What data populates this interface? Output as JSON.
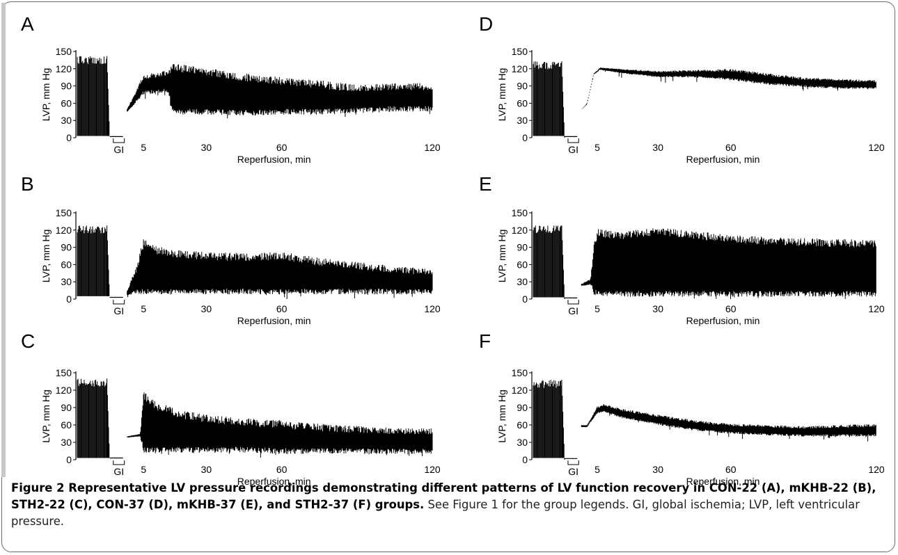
{
  "figure": {
    "caption_bold": "Figure 2 Representative LV pressure recordings demonstrating different patterns of LV function recovery in CON-22 (A), mKHB-22 (B), STH2-22 (C), CON-37 (D), mKHB-37 (E), and STH2-37 (F) groups.",
    "caption_rest": " See Figure 1 for the group legends. GI, global ischemia; LVP, left ventricular pressure."
  },
  "chart_data": [
    {
      "panel": "A",
      "type": "line",
      "ylabel": "LVP, mm Hg",
      "xlabel": "Reperfusion, min",
      "yticks": [
        0,
        30,
        60,
        90,
        120,
        150
      ],
      "xticks": [
        5,
        30,
        60,
        120
      ],
      "gap_label": "GI",
      "series": [
        {
          "baseline_max": 142,
          "baseline_min": 3,
          "ischemia_value": 2,
          "reperfusion_start": 40,
          "x": [
            0,
            5,
            15,
            16,
            20,
            30,
            45,
            60,
            75,
            90,
            105,
            120
          ],
          "upper": [
            45,
            110,
            118,
            128,
            128,
            122,
            112,
            105,
            100,
            92,
            95,
            95
          ],
          "lower": [
            42,
            75,
            78,
            45,
            40,
            40,
            38,
            40,
            40,
            42,
            45,
            45
          ]
        }
      ]
    },
    {
      "panel": "B",
      "type": "line",
      "ylabel": "LVP, mm Hg",
      "xlabel": "Reperfusion, min",
      "yticks": [
        0,
        30,
        60,
        90,
        120,
        150
      ],
      "xticks": [
        5,
        30,
        60,
        120
      ],
      "gap_label": "GI",
      "series": [
        {
          "baseline_max": 128,
          "baseline_min": 5,
          "ischemia_value": 3,
          "reperfusion_start": 6,
          "x": [
            0,
            3,
            5,
            10,
            20,
            30,
            45,
            60,
            75,
            90,
            105,
            120
          ],
          "upper": [
            8,
            60,
            105,
            92,
            85,
            82,
            80,
            82,
            72,
            65,
            58,
            52
          ],
          "lower": [
            6,
            8,
            8,
            8,
            8,
            8,
            8,
            8,
            8,
            8,
            8,
            8
          ]
        }
      ]
    },
    {
      "panel": "C",
      "type": "line",
      "ylabel": "LVP, mm Hg",
      "xlabel": "Reperfusion, min",
      "yticks": [
        0,
        30,
        60,
        90,
        120,
        150
      ],
      "xticks": [
        5,
        30,
        60,
        120
      ],
      "gap_label": "GI",
      "series": [
        {
          "baseline_max": 140,
          "baseline_min": 3,
          "ischemia_value": 3,
          "reperfusion_start": 35,
          "x": [
            0,
            4,
            5,
            10,
            20,
            30,
            45,
            60,
            75,
            90,
            105,
            120
          ],
          "upper": [
            40,
            45,
            118,
            100,
            85,
            78,
            72,
            68,
            62,
            58,
            55,
            55
          ],
          "lower": [
            38,
            40,
            12,
            12,
            12,
            12,
            12,
            10,
            10,
            10,
            10,
            10
          ]
        }
      ]
    },
    {
      "panel": "D",
      "type": "line",
      "ylabel": "LVP, mm Hg",
      "xlabel": "Reperfusion, min",
      "yticks": [
        0,
        30,
        60,
        90,
        120,
        150
      ],
      "xticks": [
        5,
        30,
        60,
        120
      ],
      "gap_label": "GI",
      "series": [
        {
          "baseline_max": 133,
          "baseline_min": 3,
          "ischemia_value": 2,
          "reperfusion_start": 45,
          "x": [
            0,
            2,
            4,
            6,
            15,
            30,
            45,
            60,
            75,
            90,
            105,
            120
          ],
          "upper": [
            46,
            60,
            112,
            122,
            120,
            116,
            118,
            120,
            112,
            105,
            102,
            100
          ],
          "lower": [
            46,
            58,
            110,
            118,
            112,
            105,
            105,
            100,
            92,
            88,
            85,
            85
          ]
        }
      ]
    },
    {
      "panel": "E",
      "type": "line",
      "ylabel": "LVP, mm Hg",
      "xlabel": "Reperfusion, min",
      "yticks": [
        0,
        30,
        60,
        90,
        120,
        150
      ],
      "xticks": [
        5,
        30,
        60,
        120
      ],
      "gap_label": "GI",
      "series": [
        {
          "baseline_max": 128,
          "baseline_min": 3,
          "ischemia_value": 2,
          "reperfusion_start": 22,
          "x": [
            0,
            3,
            4,
            5,
            15,
            30,
            45,
            60,
            75,
            90,
            105,
            120
          ],
          "upper": [
            25,
            35,
            95,
            122,
            118,
            125,
            118,
            112,
            108,
            106,
            104,
            104
          ],
          "lower": [
            22,
            25,
            8,
            5,
            4,
            4,
            4,
            4,
            4,
            4,
            4,
            4
          ]
        }
      ]
    },
    {
      "panel": "F",
      "type": "line",
      "ylabel": "LVP, mm Hg",
      "xlabel": "Reperfusion, min",
      "yticks": [
        0,
        30,
        60,
        90,
        120,
        150
      ],
      "xticks": [
        5,
        30,
        60,
        120
      ],
      "gap_label": "GI",
      "series": [
        {
          "baseline_max": 138,
          "baseline_min": 3,
          "ischemia_value": 2,
          "reperfusion_start": 58,
          "x": [
            0,
            2,
            5,
            8,
            15,
            30,
            45,
            60,
            75,
            90,
            105,
            120
          ],
          "upper": [
            60,
            60,
            92,
            96,
            88,
            78,
            68,
            62,
            60,
            58,
            60,
            62
          ],
          "lower": [
            56,
            56,
            80,
            82,
            72,
            60,
            50,
            45,
            42,
            40,
            40,
            40
          ]
        }
      ]
    }
  ]
}
